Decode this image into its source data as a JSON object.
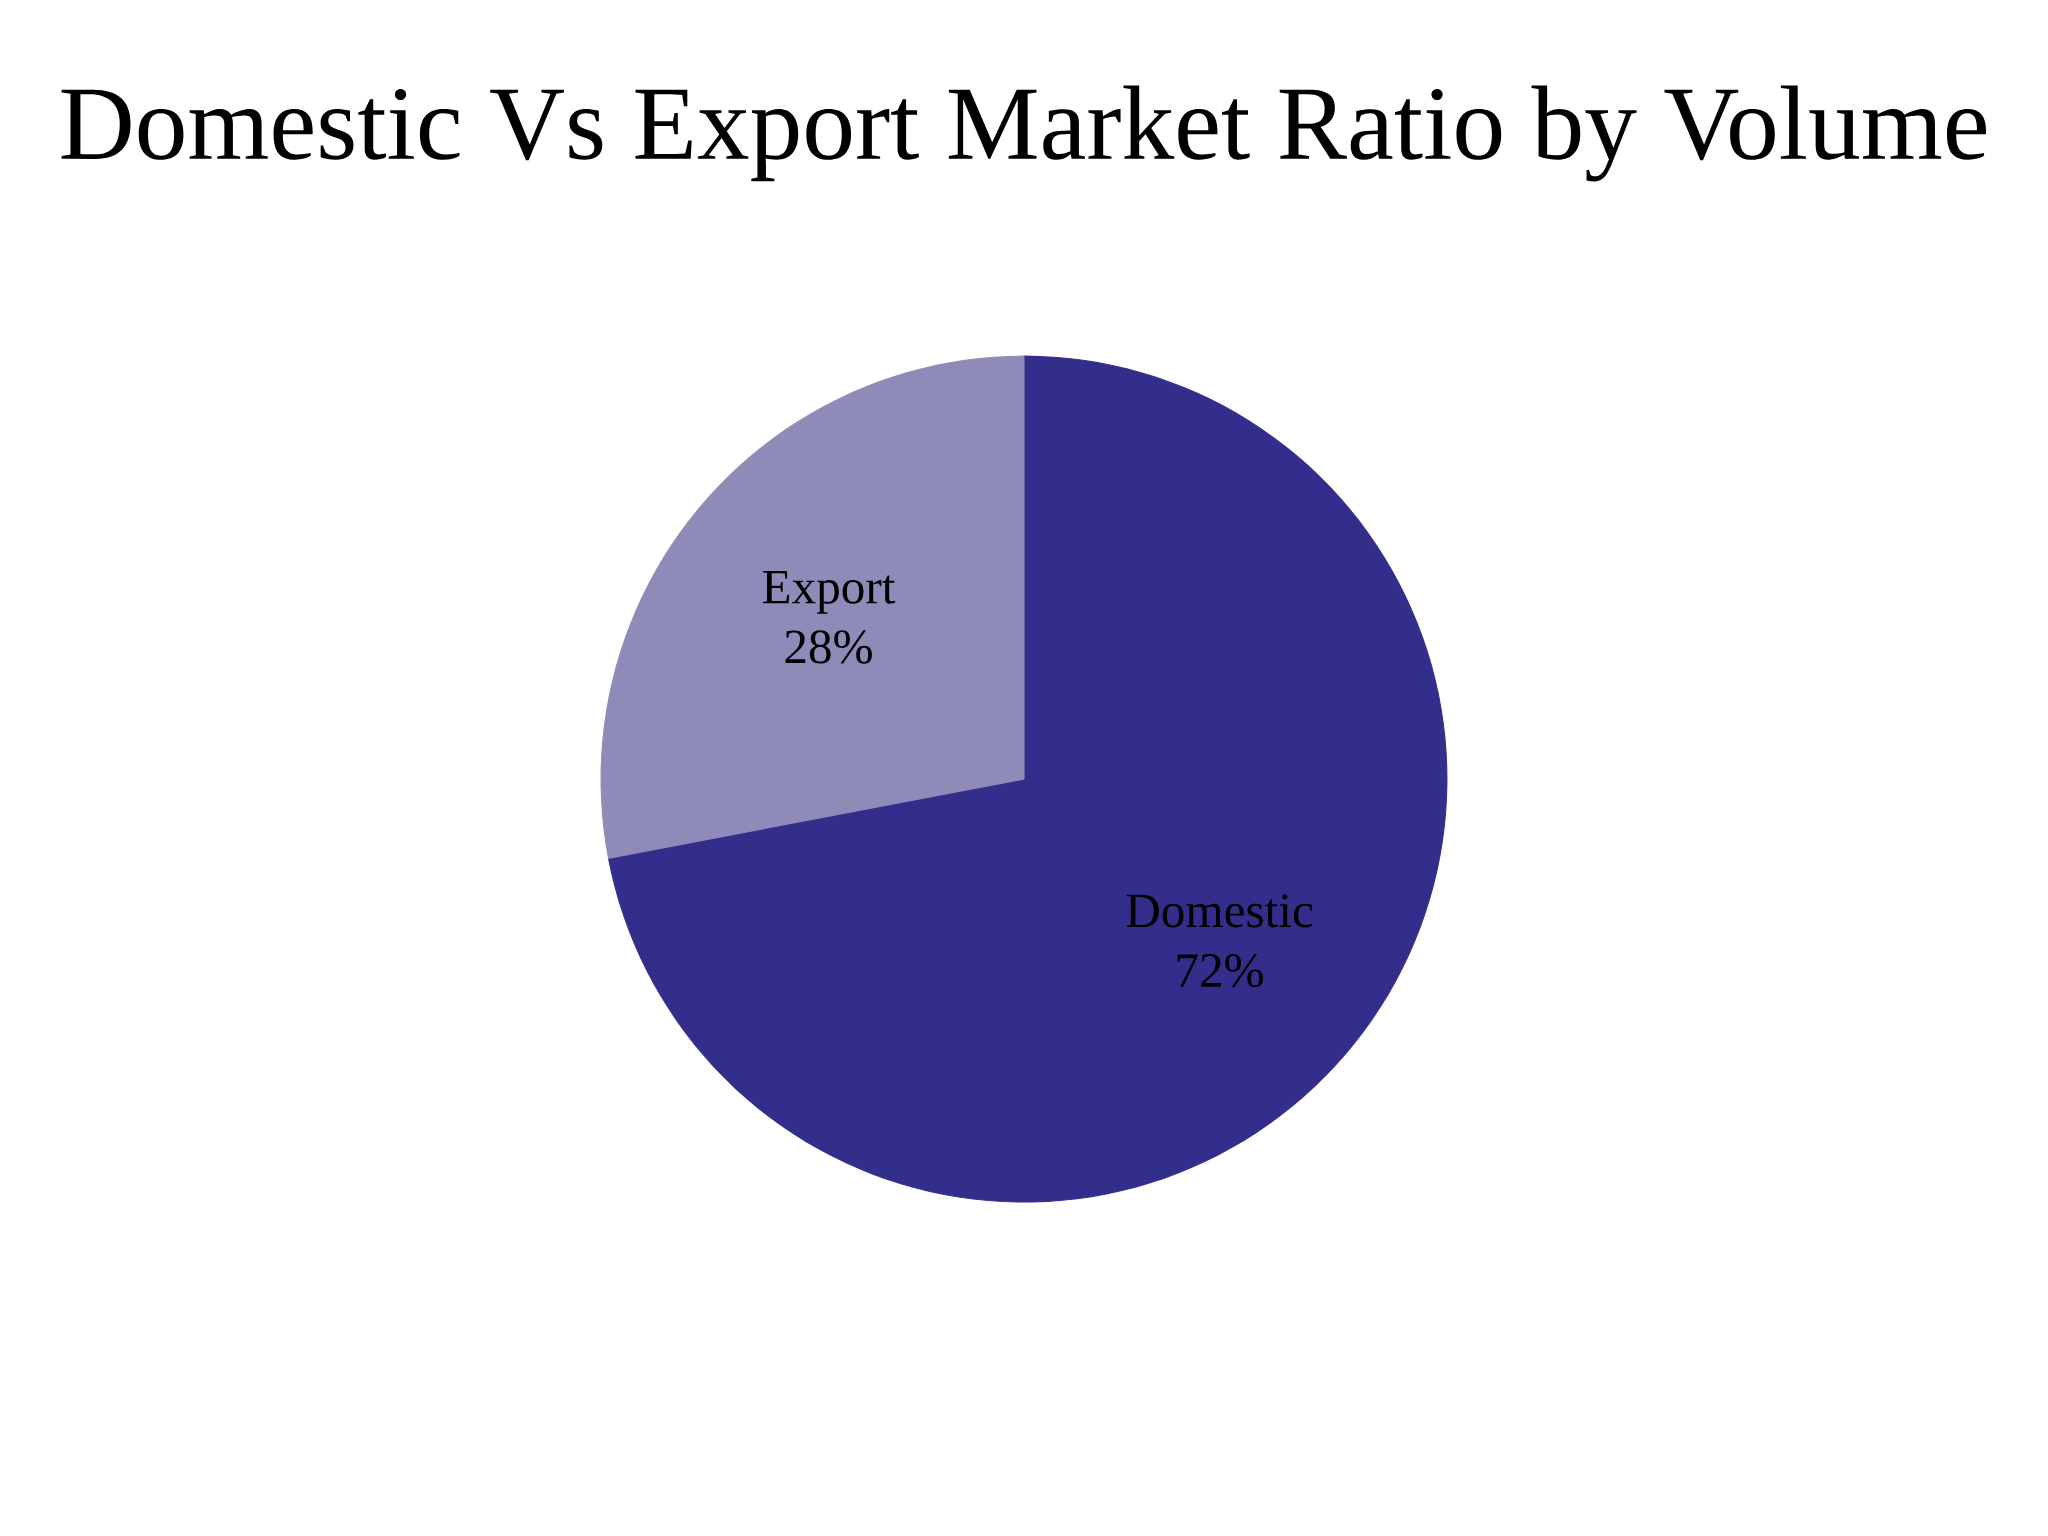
{
  "chart_data": {
    "type": "pie",
    "title": "Domestic Vs Export Market Ratio by Volume",
    "categories": [
      "Domestic",
      "Export"
    ],
    "values": [
      72,
      28
    ],
    "value_labels": [
      "72%",
      "28%"
    ],
    "colors": [
      "#332e8c",
      "#8f8bb8"
    ]
  }
}
